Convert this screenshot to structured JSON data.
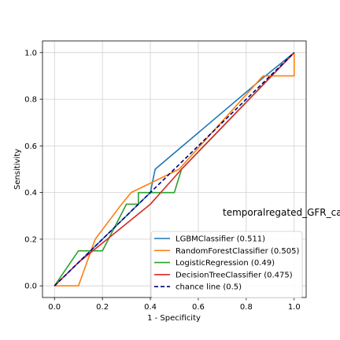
{
  "chart_data": {
    "type": "line",
    "xlabel": "1 - Specificity",
    "ylabel": "Sensitivity",
    "xlim": [
      -0.05,
      1.05
    ],
    "ylim": [
      -0.05,
      1.05
    ],
    "xticks": [
      "0.0",
      "0.2",
      "0.4",
      "0.6",
      "0.8",
      "1.0"
    ],
    "yticks": [
      "0.0",
      "0.2",
      "0.4",
      "0.6",
      "0.8",
      "1.0"
    ],
    "grid": true,
    "legend_position": "lower right",
    "annotation": "temporalregated_GFR_ca",
    "series": [
      {
        "name": "LGBMClassifier (0.511)",
        "color": "#1f77b4",
        "style": "solid",
        "points": [
          [
            0.0,
            0.0
          ],
          [
            0.1,
            0.1
          ],
          [
            0.2,
            0.2
          ],
          [
            0.3,
            0.3
          ],
          [
            0.4,
            0.4
          ],
          [
            0.42,
            0.5
          ],
          [
            0.88,
            0.9
          ],
          [
            1.0,
            1.0
          ]
        ]
      },
      {
        "name": "RandomForestClassifier (0.505)",
        "color": "#ff7f0e",
        "style": "solid",
        "points": [
          [
            0.0,
            0.0
          ],
          [
            0.1,
            0.0
          ],
          [
            0.17,
            0.2
          ],
          [
            0.28,
            0.35
          ],
          [
            0.32,
            0.4
          ],
          [
            0.52,
            0.5
          ],
          [
            0.87,
            0.9
          ],
          [
            1.0,
            0.9
          ],
          [
            1.0,
            1.0
          ]
        ]
      },
      {
        "name": "LogisticRegression (0.49)",
        "color": "#2ca02c",
        "style": "solid",
        "points": [
          [
            0.0,
            0.0
          ],
          [
            0.1,
            0.15
          ],
          [
            0.2,
            0.15
          ],
          [
            0.3,
            0.35
          ],
          [
            0.35,
            0.35
          ],
          [
            0.35,
            0.4
          ],
          [
            0.5,
            0.4
          ],
          [
            0.53,
            0.5
          ],
          [
            1.0,
            1.0
          ]
        ]
      },
      {
        "name": "DecisionTreeClassifier (0.475)",
        "color": "#d62728",
        "style": "solid",
        "points": [
          [
            0.0,
            0.0
          ],
          [
            0.1,
            0.1
          ],
          [
            0.4,
            0.35
          ],
          [
            0.53,
            0.5
          ],
          [
            1.0,
            1.0
          ]
        ]
      },
      {
        "name": "chance line (0.5)",
        "color": "#000080",
        "style": "dashed",
        "points": [
          [
            0.0,
            0.0
          ],
          [
            1.0,
            1.0
          ]
        ]
      }
    ]
  }
}
